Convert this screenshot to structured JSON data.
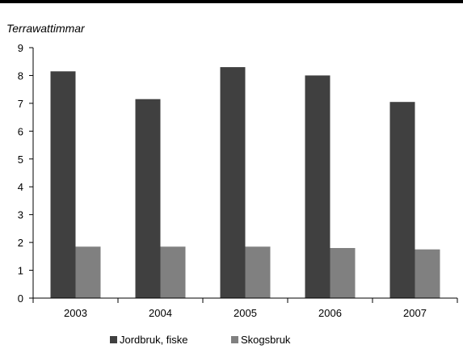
{
  "chart_data": {
    "type": "bar",
    "title": "",
    "xlabel": "",
    "ylabel": "Terrawattimmar",
    "categories": [
      "2003",
      "2004",
      "2005",
      "2006",
      "2007"
    ],
    "ylim": [
      0,
      9
    ],
    "yticks": [
      0,
      1,
      2,
      3,
      4,
      5,
      6,
      7,
      8,
      9
    ],
    "grid": false,
    "legend": "bottom",
    "series": [
      {
        "name": "Jordbruk, fiske",
        "color": "#404040",
        "values": [
          8.15,
          7.15,
          8.3,
          8.0,
          7.05
        ]
      },
      {
        "name": "Skogsbruk",
        "color": "#808080",
        "values": [
          1.85,
          1.85,
          1.85,
          1.8,
          1.75
        ]
      }
    ]
  }
}
